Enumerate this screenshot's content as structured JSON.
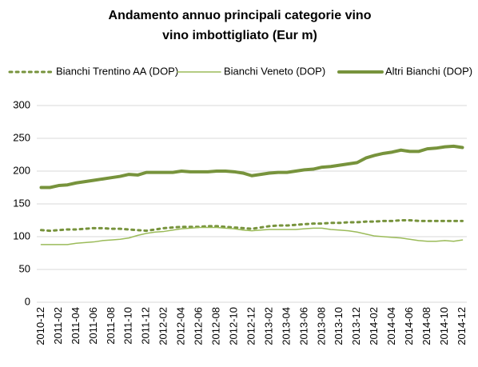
{
  "chart_data": {
    "type": "line",
    "title": "Andamento annuo principali categorie vino",
    "subtitle": "vino imbottigliato (Eur m)",
    "categories": [
      "2010-12",
      null,
      "2011-02",
      null,
      "2011-04",
      null,
      "2011-06",
      null,
      "2011-08",
      null,
      "2011-10",
      null,
      "2011-12",
      null,
      "2012-02",
      null,
      "2012-04",
      null,
      "2012-06",
      null,
      "2012-08",
      null,
      "2012-10",
      null,
      "2012-12",
      null,
      "2013-02",
      null,
      "2013-04",
      null,
      "2013-06",
      null,
      "2013-08",
      null,
      "2013-10",
      null,
      "2013-12",
      null,
      "2014-02",
      null,
      "2014-04",
      null,
      "2014-06",
      null,
      "2014-08",
      null,
      "2014-10",
      null,
      "2014-12"
    ],
    "series": [
      {
        "name": "Bianchi Trentino AA (DOP)",
        "color": "#77933c",
        "line_style": "dotted",
        "width": 3,
        "values": [
          110,
          109,
          110,
          111,
          111,
          112,
          113,
          113,
          112,
          112,
          111,
          110,
          109,
          111,
          113,
          114,
          115,
          115,
          115,
          116,
          116,
          115,
          114,
          113,
          112,
          114,
          116,
          117,
          117,
          118,
          119,
          120,
          120,
          121,
          121,
          122,
          122,
          123,
          123,
          124,
          124,
          125,
          125,
          124,
          124,
          124,
          124,
          124,
          124
        ]
      },
      {
        "name": "Bianchi Veneto (DOP)",
        "color": "#9bbb59",
        "line_style": "solid",
        "width": 1.5,
        "values": [
          88,
          88,
          88,
          88,
          90,
          91,
          92,
          94,
          95,
          96,
          98,
          102,
          105,
          107,
          108,
          110,
          112,
          113,
          114,
          114,
          114,
          113,
          112,
          110,
          109,
          110,
          111,
          111,
          111,
          111,
          112,
          113,
          113,
          111,
          110,
          109,
          107,
          104,
          101,
          100,
          99,
          98,
          96,
          94,
          93,
          93,
          94,
          93,
          95
        ]
      },
      {
        "name": "Altri Bianchi (DOP)",
        "color": "#77933c",
        "line_style": "solid",
        "width": 4,
        "values": [
          175,
          175,
          178,
          179,
          182,
          184,
          186,
          188,
          190,
          192,
          195,
          194,
          198,
          198,
          198,
          198,
          200,
          199,
          199,
          199,
          200,
          200,
          199,
          197,
          193,
          195,
          197,
          198,
          198,
          200,
          202,
          203,
          206,
          207,
          209,
          211,
          213,
          220,
          224,
          227,
          229,
          232,
          230,
          230,
          234,
          235,
          237,
          238,
          236
        ]
      }
    ],
    "ylim": [
      0,
      300
    ],
    "yticks": [
      0,
      50,
      100,
      150,
      200,
      250,
      300
    ],
    "grid": true,
    "legend": "top"
  }
}
